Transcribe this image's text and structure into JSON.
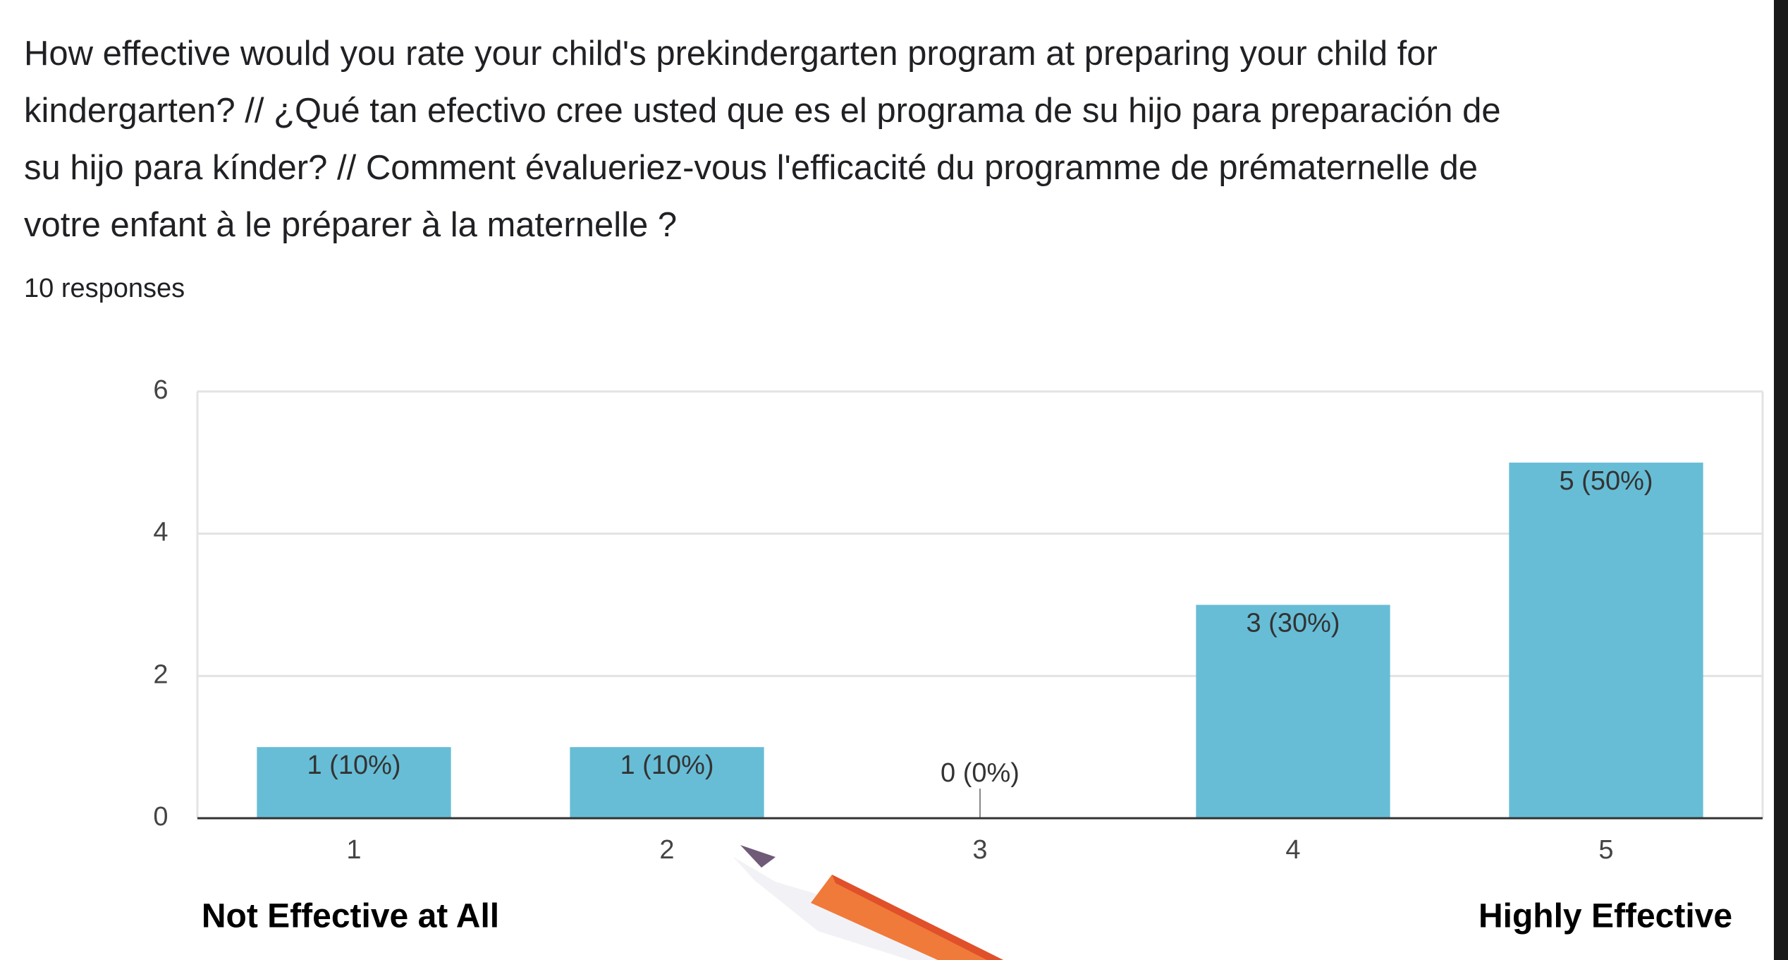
{
  "chart_data": {
    "type": "bar",
    "title": "How effective would you rate your child's prekindergarten program at preparing your child for kindergarten? // ¿Qué tan efectivo  cree usted que es el programa de su hijo para preparación de su hijo para  kínder? // Comment évalueriez-vous l'efficacité du programme de prématernelle de votre enfant à le préparer à la maternelle ?",
    "subtitle": "10 responses",
    "categories": [
      "1",
      "2",
      "3",
      "4",
      "5"
    ],
    "values": [
      1,
      1,
      0,
      3,
      5
    ],
    "value_labels": [
      "1 (10%)",
      "1 (10%)",
      "0 (0%)",
      "3 (30%)",
      "5 (50%)"
    ],
    "color": "#67bdd6",
    "ylim": [
      0,
      6
    ],
    "yticks": [
      0,
      2,
      4,
      6
    ],
    "grid": true,
    "annotations": [
      "Not Effective  at All",
      "Highly Effective"
    ]
  }
}
